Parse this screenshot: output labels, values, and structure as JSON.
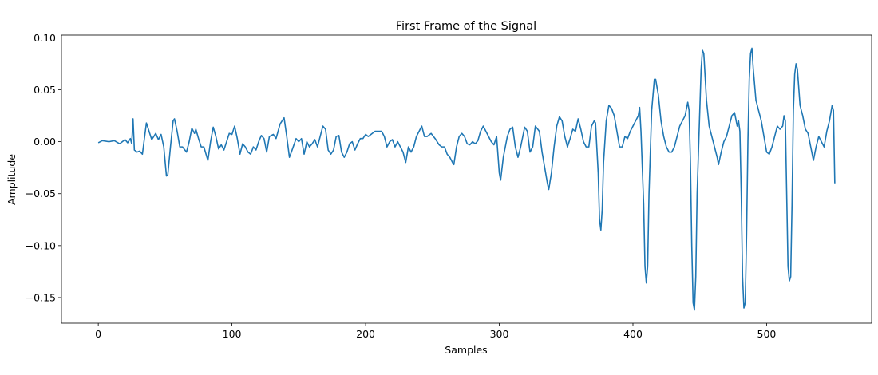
{
  "chart_data": {
    "type": "line",
    "title": "First Frame of the Signal",
    "xlabel": "Samples",
    "ylabel": "Amplitude",
    "color": "#1f77b4",
    "x": [
      0,
      3,
      8,
      12,
      16,
      20,
      22,
      24,
      25,
      26,
      27,
      29,
      31,
      33,
      36,
      38,
      40,
      43,
      45,
      47,
      49,
      51,
      52,
      54,
      56,
      57,
      59,
      61,
      63,
      66,
      68,
      70,
      72,
      73,
      75,
      77,
      79,
      82,
      84,
      86,
      88,
      90,
      92,
      94,
      96,
      98,
      100,
      102,
      104,
      106,
      108,
      110,
      112,
      114,
      116,
      118,
      120,
      122,
      124,
      126,
      128,
      131,
      133,
      136,
      139,
      141,
      143,
      145,
      148,
      150,
      152,
      154,
      156,
      158,
      160,
      162,
      164,
      166,
      168,
      170,
      172,
      174,
      176,
      178,
      180,
      182,
      184,
      186,
      188,
      190,
      192,
      194,
      196,
      198,
      200,
      202,
      204,
      207,
      210,
      212,
      214,
      216,
      218,
      220,
      222,
      224,
      226,
      228,
      230,
      232,
      234,
      236,
      238,
      240,
      242,
      244,
      246,
      249,
      252,
      255,
      257,
      259,
      261,
      263,
      265,
      266,
      268,
      270,
      272,
      274,
      276,
      278,
      280,
      282,
      284,
      286,
      288,
      290,
      292,
      294,
      296,
      298,
      300,
      301,
      303,
      306,
      308,
      310,
      312,
      314,
      316,
      319,
      321,
      323,
      325,
      327,
      330,
      332,
      334,
      336,
      337,
      339,
      341,
      343,
      345,
      347,
      349,
      351,
      353,
      355,
      357,
      359,
      361,
      363,
      365,
      367,
      369,
      371,
      372,
      374,
      375,
      376,
      377,
      378,
      380,
      382,
      384,
      386,
      388,
      390,
      392,
      394,
      396,
      398,
      400,
      402,
      404,
      405,
      406,
      408,
      409,
      410,
      411,
      412,
      414,
      416,
      417,
      419,
      421,
      423,
      425,
      427,
      429,
      431,
      433,
      435,
      437,
      439,
      441,
      442,
      443,
      444,
      445,
      446,
      447,
      448,
      450,
      451,
      452,
      453,
      455,
      457,
      459,
      461,
      463,
      464,
      466,
      468,
      470,
      472,
      474,
      476,
      478,
      479,
      480,
      481,
      482,
      483,
      484,
      485,
      486,
      487,
      488,
      489,
      490,
      492,
      494,
      496,
      498,
      500,
      502,
      504,
      506,
      508,
      510,
      512,
      513,
      514,
      515,
      516,
      517,
      518,
      519,
      520,
      521,
      522,
      523,
      525,
      527,
      529,
      531,
      533,
      535,
      537,
      539,
      541,
      543,
      545,
      547,
      549,
      550,
      551
    ],
    "values": [
      -0.001,
      0.001,
      0,
      0.001,
      -0.002,
      0.002,
      -0.001,
      0.003,
      -0.002,
      0.022,
      -0.008,
      -0.01,
      -0.009,
      -0.012,
      0.018,
      0.01,
      0.002,
      0.008,
      0.002,
      0.007,
      -0.005,
      -0.033,
      -0.032,
      -0.005,
      0.02,
      0.022,
      0.01,
      -0.005,
      -0.005,
      -0.01,
      0,
      0.013,
      0.008,
      0.012,
      0.003,
      -0.005,
      -0.005,
      -0.018,
      0,
      0.014,
      0.005,
      -0.007,
      -0.003,
      -0.008,
      0,
      0.008,
      0.007,
      0.015,
      0.003,
      -0.012,
      -0.002,
      -0.005,
      -0.01,
      -0.012,
      -0.005,
      -0.008,
      0,
      0.006,
      0.003,
      -0.01,
      0.005,
      0.007,
      0.003,
      0.017,
      0.023,
      0.005,
      -0.015,
      -0.008,
      0.003,
      0,
      0.003,
      -0.012,
      0,
      -0.005,
      -0.002,
      0.002,
      -0.005,
      0.005,
      0.015,
      0.012,
      -0.008,
      -0.012,
      -0.008,
      0.005,
      0.006,
      -0.01,
      -0.015,
      -0.01,
      -0.002,
      0,
      -0.008,
      -0.002,
      0.003,
      0.003,
      0.007,
      0.005,
      0.007,
      0.01,
      0.01,
      0.01,
      0.005,
      -0.005,
      0,
      0.002,
      -0.005,
      0,
      -0.005,
      -0.01,
      -0.02,
      -0.005,
      -0.01,
      -0.005,
      0.005,
      0.01,
      0.015,
      0.005,
      0.005,
      0.008,
      0.003,
      -0.003,
      -0.005,
      -0.005,
      -0.012,
      -0.015,
      -0.02,
      -0.022,
      -0.005,
      0.005,
      0.008,
      0.005,
      -0.002,
      -0.003,
      0,
      -0.002,
      0.001,
      0.01,
      0.015,
      0.01,
      0.005,
      0,
      -0.003,
      0.005,
      -0.03,
      -0.037,
      -0.015,
      0.005,
      0.012,
      0.014,
      -0.005,
      -0.015,
      -0.005,
      0.014,
      0.01,
      -0.01,
      -0.005,
      0.015,
      0.01,
      -0.01,
      -0.025,
      -0.04,
      -0.046,
      -0.03,
      -0.005,
      0.015,
      0.024,
      0.02,
      0.005,
      -0.005,
      0.003,
      0.012,
      0.01,
      0.022,
      0.012,
      0,
      -0.005,
      -0.005,
      0.015,
      0.02,
      0.018,
      -0.03,
      -0.075,
      -0.085,
      -0.065,
      -0.02,
      0.02,
      0.035,
      0.032,
      0.025,
      0.01,
      -0.005,
      -0.005,
      0.005,
      0.003,
      0.01,
      0.015,
      0.02,
      0.025,
      0.033,
      0.01,
      -0.06,
      -0.12,
      -0.136,
      -0.12,
      -0.05,
      0.03,
      0.06,
      0.06,
      0.045,
      0.02,
      0.005,
      -0.005,
      -0.01,
      -0.01,
      -0.005,
      0.005,
      0.015,
      0.02,
      0.025,
      0.038,
      0.03,
      -0.02,
      -0.1,
      -0.155,
      -0.162,
      -0.13,
      -0.05,
      0.03,
      0.07,
      0.088,
      0.085,
      0.04,
      0.015,
      0.005,
      -0.005,
      -0.015,
      -0.022,
      -0.01,
      0,
      0.005,
      0.015,
      0.025,
      0.028,
      0.015,
      0.02,
      0.01,
      -0.05,
      -0.13,
      -0.16,
      -0.155,
      -0.09,
      0,
      0.06,
      0.085,
      0.09,
      0.07,
      0.04,
      0.03,
      0.02,
      0.005,
      -0.01,
      -0.012,
      -0.005,
      0.005,
      0.015,
      0.012,
      0.015,
      0.025,
      0.02,
      -0.05,
      -0.12,
      -0.134,
      -0.13,
      -0.06,
      0.03,
      0.065,
      0.075,
      0.07,
      0.035,
      0.025,
      0.012,
      0.008,
      -0.005,
      -0.018,
      -0.005,
      0.005,
      0,
      -0.005,
      0.01,
      0.02,
      0.035,
      0.03,
      -0.04
    ],
    "xlim": [
      -27.55,
      578.55
    ],
    "xticks": [
      0,
      100,
      200,
      300,
      400,
      500
    ],
    "ylim": [
      -0.1746,
      0.1026
    ],
    "yticks": [
      {
        "value": -0.15,
        "label": "−0.15"
      },
      {
        "value": -0.1,
        "label": "−0.10"
      },
      {
        "value": -0.05,
        "label": "−0.05"
      },
      {
        "value": 0,
        "label": "0.00"
      },
      {
        "value": 0.05,
        "label": "0.05"
      },
      {
        "value": 0.1,
        "label": "0.10"
      }
    ]
  }
}
